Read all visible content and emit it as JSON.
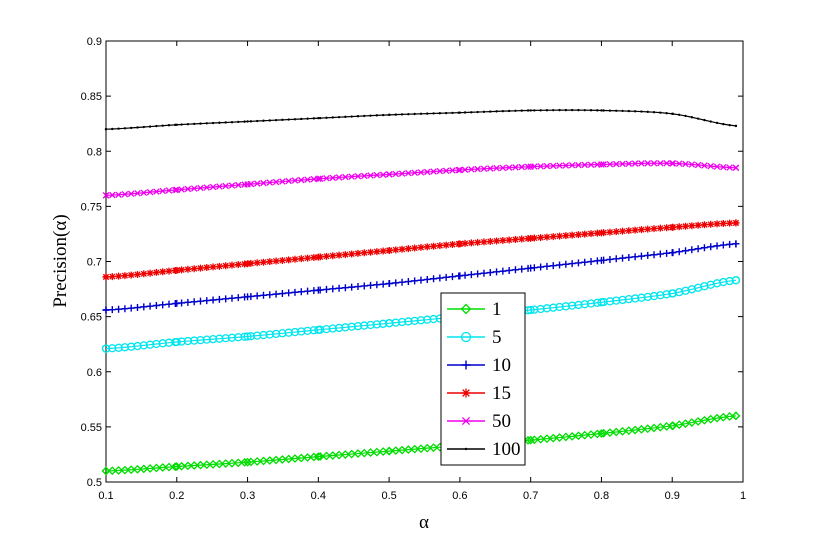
{
  "chart_data": {
    "type": "line",
    "xlabel": "α",
    "ylabel": "Precision(α)",
    "xlim": [
      0.1,
      1.0
    ],
    "ylim": [
      0.5,
      0.9
    ],
    "x_ticks": [
      "0.1",
      "0.2",
      "0.3",
      "0.4",
      "0.5",
      "0.6",
      "0.7",
      "0.8",
      "0.9",
      "1"
    ],
    "y_ticks": [
      "0.5",
      "0.55",
      "0.6",
      "0.65",
      "0.7",
      "0.75",
      "0.8",
      "0.85",
      "0.9"
    ],
    "x": [
      0.1,
      0.2,
      0.3,
      0.4,
      0.5,
      0.6,
      0.7,
      0.8,
      0.9,
      0.99
    ],
    "grid": false,
    "legend_position": "lower-center",
    "series": [
      {
        "name": "1",
        "color": "#00dd00",
        "marker": "diamond",
        "values": [
          0.51,
          0.514,
          0.518,
          0.523,
          0.528,
          0.533,
          0.538,
          0.544,
          0.551,
          0.56
        ]
      },
      {
        "name": "5",
        "color": "#00e5ee",
        "marker": "circle",
        "values": [
          0.621,
          0.627,
          0.632,
          0.638,
          0.644,
          0.65,
          0.656,
          0.663,
          0.671,
          0.683
        ]
      },
      {
        "name": "10",
        "color": "#0000cc",
        "marker": "plus",
        "values": [
          0.656,
          0.662,
          0.668,
          0.674,
          0.68,
          0.687,
          0.694,
          0.701,
          0.708,
          0.716
        ]
      },
      {
        "name": "15",
        "color": "#ee0000",
        "marker": "star",
        "values": [
          0.686,
          0.692,
          0.698,
          0.704,
          0.71,
          0.716,
          0.721,
          0.726,
          0.731,
          0.735
        ]
      },
      {
        "name": "50",
        "color": "#ee00ee",
        "marker": "x",
        "values": [
          0.76,
          0.765,
          0.77,
          0.775,
          0.779,
          0.783,
          0.786,
          0.788,
          0.789,
          0.785
        ]
      },
      {
        "name": "100",
        "color": "#000000",
        "marker": "dot",
        "values": [
          0.82,
          0.824,
          0.827,
          0.83,
          0.833,
          0.835,
          0.837,
          0.837,
          0.834,
          0.823
        ]
      }
    ]
  }
}
